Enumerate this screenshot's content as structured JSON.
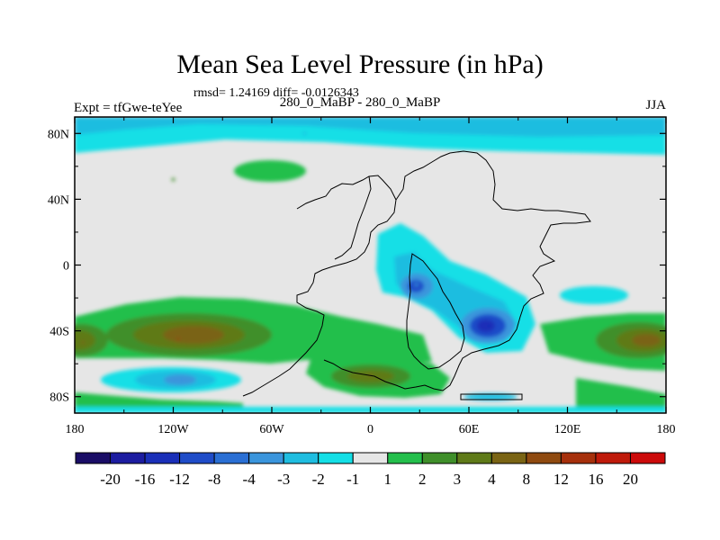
{
  "chart_data": {
    "type": "heatmap",
    "title": "Mean Sea Level Pressure (in hPa)",
    "stats_line": "rmsd= 1.24169 diff= -0.0126343",
    "left_label": "Expt = tfGwe-teYee",
    "center_label": "280_0_MaBP - 280_0_MaBP",
    "right_label": "JJA",
    "x_ticks": [
      "180",
      "120W",
      "60W",
      "0",
      "60E",
      "120E",
      "180"
    ],
    "x_tick_values": [
      -180,
      -120,
      -60,
      0,
      60,
      120,
      180
    ],
    "y_ticks": [
      "80N",
      "40N",
      "0",
      "40S",
      "80S"
    ],
    "y_tick_values": [
      80,
      40,
      0,
      -40,
      -80
    ],
    "xlim": [
      -180,
      180
    ],
    "ylim": [
      -90,
      90
    ],
    "colorbar": {
      "labels": [
        "-20",
        "-16",
        "-12",
        "-8",
        "-4",
        "-3",
        "-2",
        "-1",
        "1",
        "2",
        "3",
        "4",
        "8",
        "12",
        "16",
        "20"
      ],
      "colors": [
        "#1a0d66",
        "#1c1ca0",
        "#1a2fb8",
        "#1f4cc8",
        "#2a6fd4",
        "#3a95dc",
        "#1fbde0",
        "#14dfe6",
        "#e6e6e6",
        "#24bf4c",
        "#3f8f2a",
        "#5f7a18",
        "#7a6414",
        "#8f4a10",
        "#a6300c",
        "#bf1a0a",
        "#cc0a0a"
      ]
    },
    "anomaly_regions": [
      {
        "name": "arctic-low",
        "lon": -40,
        "lat": 80,
        "level": "-2"
      },
      {
        "name": "north-pacific-high",
        "lon": -120,
        "lat": 52,
        "level": "2"
      },
      {
        "name": "indian-ocean-low-1",
        "lon": 28,
        "lat": -12,
        "level": "-3"
      },
      {
        "name": "indian-ocean-low-2",
        "lon": 72,
        "lat": -37,
        "level": "-12"
      },
      {
        "name": "south-pacific-high",
        "lon": -117,
        "lat": -45,
        "level": "8"
      },
      {
        "name": "southern-high-east",
        "lon": 165,
        "lat": -47,
        "level": "4"
      },
      {
        "name": "southern-high-west",
        "lon": -175,
        "lat": -47,
        "level": "4"
      },
      {
        "name": "south-atlantic-high",
        "lon": 0,
        "lat": -67,
        "level": "4"
      },
      {
        "name": "antarctic-low",
        "lon": -115,
        "lat": -70,
        "level": "-3"
      }
    ]
  }
}
